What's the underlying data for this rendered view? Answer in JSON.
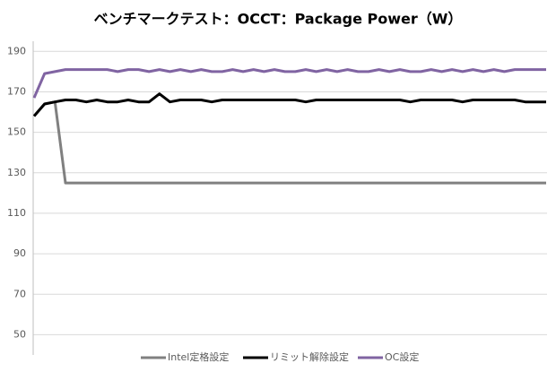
{
  "chart_data": {
    "type": "line",
    "title": "ベンチマークテスト：OCCT：Package Power（W）",
    "ylim": [
      40,
      195
    ],
    "yticks": [
      50,
      70,
      90,
      110,
      130,
      150,
      170,
      190
    ],
    "grid": true,
    "legend": "bottom",
    "series": [
      {
        "name": "Intel定格設定",
        "color": "#808080",
        "values": [
          158,
          164,
          165,
          125,
          125,
          125,
          125,
          125,
          125,
          125,
          125,
          125,
          125,
          125,
          125,
          125,
          125,
          125,
          125,
          125,
          125,
          125,
          125,
          125,
          125,
          125,
          125,
          125,
          125,
          125,
          125,
          125,
          125,
          125,
          125,
          125,
          125,
          125,
          125,
          125,
          125,
          125,
          125,
          125,
          125,
          125,
          125,
          125,
          125,
          125
        ]
      },
      {
        "name": "リミット解除設定",
        "color": "#000000",
        "values": [
          158,
          164,
          165,
          166,
          166,
          165,
          166,
          165,
          165,
          166,
          165,
          165,
          169,
          165,
          166,
          166,
          166,
          165,
          166,
          166,
          166,
          166,
          166,
          166,
          166,
          166,
          165,
          166,
          166,
          166,
          166,
          166,
          166,
          166,
          166,
          166,
          165,
          166,
          166,
          166,
          166,
          165,
          166,
          166,
          166,
          166,
          166,
          165,
          165,
          165
        ]
      },
      {
        "name": "OC設定",
        "color": "#8064a2",
        "values": [
          167,
          179,
          180,
          181,
          181,
          181,
          181,
          181,
          180,
          181,
          181,
          180,
          181,
          180,
          181,
          180,
          181,
          180,
          180,
          181,
          180,
          181,
          180,
          181,
          180,
          180,
          181,
          180,
          181,
          180,
          181,
          180,
          180,
          181,
          180,
          181,
          180,
          180,
          181,
          180,
          181,
          180,
          181,
          180,
          181,
          180,
          181,
          181,
          181,
          181
        ]
      }
    ]
  }
}
